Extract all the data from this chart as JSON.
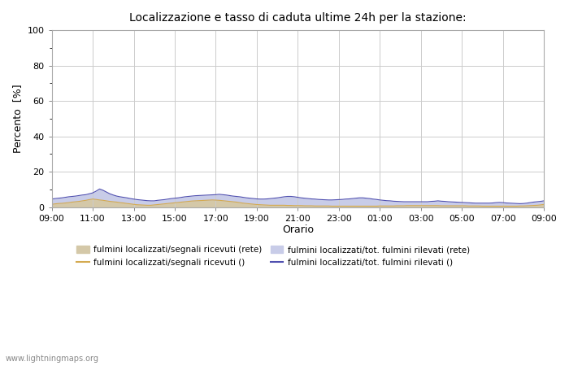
{
  "title": "Localizzazione e tasso di caduta ultime 24h per la stazione:",
  "xlabel": "Orario",
  "ylabel": "Percento  [%]",
  "ylim": [
    0,
    100
  ],
  "yticks": [
    0,
    20,
    40,
    60,
    80,
    100
  ],
  "yticks_minor": [
    10,
    30,
    50,
    70,
    90
  ],
  "x_labels": [
    "09:00",
    "11:00",
    "13:00",
    "15:00",
    "17:00",
    "19:00",
    "21:00",
    "23:00",
    "01:00",
    "03:00",
    "05:00",
    "07:00",
    "09:00"
  ],
  "n_points": 145,
  "background_color": "#ffffff",
  "plot_bg_color": "#ffffff",
  "grid_color": "#cccccc",
  "fill_color_rete": "#d4c8a8",
  "fill_color_tot": "#c8cce8",
  "line_color_rete": "#d4aa50",
  "line_color_tot": "#5050b0",
  "watermark": "www.lightningmaps.org",
  "legend_items": [
    {
      "label": "fulmini localizzati/segnali ricevuti (rete)",
      "color": "#d4c8a8",
      "type": "fill"
    },
    {
      "label": "fulmini localizzati/segnali ricevuti ()",
      "color": "#d4aa50",
      "type": "line"
    },
    {
      "label": "fulmini localizzati/tot. fulmini rilevati (rete)",
      "color": "#c8cce8",
      "type": "fill"
    },
    {
      "label": "fulmini localizzati/tot. fulmini rilevati ()",
      "color": "#5050b0",
      "type": "line"
    }
  ],
  "data_fill_rete": [
    1.5,
    1.8,
    2.0,
    2.1,
    2.3,
    2.5,
    2.8,
    3.0,
    3.2,
    3.5,
    3.8,
    4.2,
    4.5,
    4.3,
    4.0,
    3.8,
    3.5,
    3.2,
    3.0,
    2.8,
    2.5,
    2.3,
    2.0,
    1.8,
    1.5,
    1.3,
    1.2,
    1.1,
    1.0,
    1.0,
    1.2,
    1.4,
    1.6,
    1.8,
    2.0,
    2.2,
    2.4,
    2.6,
    2.8,
    3.0,
    3.2,
    3.4,
    3.5,
    3.6,
    3.7,
    3.8,
    3.9,
    4.0,
    3.9,
    3.8,
    3.6,
    3.4,
    3.2,
    3.0,
    2.8,
    2.5,
    2.2,
    2.0,
    1.8,
    1.6,
    1.4,
    1.3,
    1.2,
    1.1,
    1.0,
    1.0,
    1.0,
    1.0,
    1.0,
    0.9,
    0.9,
    0.8,
    0.8,
    0.8,
    0.7,
    0.7,
    0.7,
    0.6,
    0.6,
    0.6,
    0.6,
    0.6,
    0.5,
    0.5,
    0.5,
    0.5,
    0.5,
    0.5,
    0.5,
    0.5,
    0.5,
    0.5,
    0.5,
    0.5,
    0.5,
    0.5,
    0.6,
    0.6,
    0.6,
    0.6,
    0.6,
    0.7,
    0.7,
    0.7,
    0.8,
    0.8,
    0.8,
    0.8,
    0.8,
    0.8,
    0.8,
    0.8,
    0.8,
    0.8,
    0.7,
    0.7,
    0.7,
    0.7,
    0.7,
    0.7,
    0.7,
    0.7,
    0.6,
    0.6,
    0.6,
    0.6,
    0.5,
    0.5,
    0.5,
    0.5,
    0.5,
    0.5,
    0.5,
    0.5,
    0.5,
    0.5,
    0.5,
    0.6,
    0.6,
    0.7,
    0.8,
    0.9,
    1.0,
    1.2,
    1.5
  ],
  "data_fill_tot": [
    4.5,
    4.8,
    5.0,
    5.2,
    5.5,
    5.8,
    6.0,
    6.2,
    6.5,
    6.8,
    7.0,
    7.5,
    8.0,
    9.0,
    10.2,
    9.5,
    8.5,
    7.5,
    6.8,
    6.2,
    5.8,
    5.5,
    5.2,
    4.8,
    4.5,
    4.2,
    4.0,
    3.8,
    3.6,
    3.5,
    3.5,
    3.8,
    4.0,
    4.2,
    4.5,
    4.8,
    5.0,
    5.2,
    5.5,
    5.8,
    6.0,
    6.2,
    6.4,
    6.5,
    6.6,
    6.7,
    6.8,
    6.9,
    7.0,
    7.2,
    7.0,
    6.8,
    6.5,
    6.2,
    6.0,
    5.8,
    5.5,
    5.2,
    5.0,
    4.8,
    4.6,
    4.5,
    4.5,
    4.6,
    4.8,
    5.0,
    5.2,
    5.5,
    5.8,
    6.0,
    6.0,
    5.8,
    5.5,
    5.2,
    5.0,
    4.8,
    4.6,
    4.5,
    4.3,
    4.2,
    4.1,
    4.0,
    4.0,
    4.1,
    4.2,
    4.3,
    4.5,
    4.6,
    4.8,
    5.0,
    5.2,
    5.2,
    5.0,
    4.8,
    4.5,
    4.3,
    4.0,
    3.8,
    3.6,
    3.5,
    3.3,
    3.2,
    3.1,
    3.0,
    3.0,
    3.0,
    3.0,
    3.0,
    3.0,
    3.0,
    3.0,
    3.2,
    3.3,
    3.5,
    3.3,
    3.2,
    3.0,
    2.9,
    2.8,
    2.7,
    2.6,
    2.5,
    2.4,
    2.3,
    2.2,
    2.2,
    2.2,
    2.2,
    2.2,
    2.3,
    2.5,
    2.6,
    2.5,
    2.3,
    2.2,
    2.1,
    2.0,
    1.9,
    2.0,
    2.2,
    2.5,
    2.8,
    3.0,
    3.2,
    3.5
  ]
}
